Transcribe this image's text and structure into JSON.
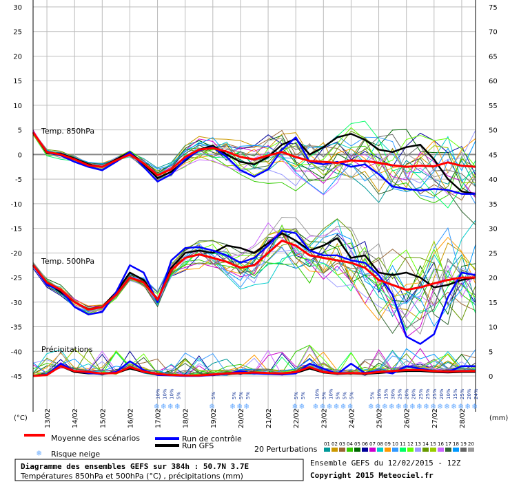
{
  "title_box": {
    "line1": "Diagramme des ensembles GEFS sur 384h : 50.7N 3.7E",
    "line2": "Températures 850hPa et 500hPa (°C) , précipitations (mm)"
  },
  "footer": {
    "run": "Ensemble GEFS du 12/02/2015 - 12Z",
    "copyright": "Copyright 2015 Meteociel.fr"
  },
  "legend": {
    "mean": "Moyenne des scénarios",
    "control": "Run de contrôle",
    "gfs": "Run GFS",
    "snow": "Risque neige",
    "perturbations": "20 Perturbations",
    "colors": {
      "mean": "#ff0000",
      "control": "#0000ff",
      "gfs": "#000000",
      "snow": "#66aaff"
    }
  },
  "perturbation_ids": [
    "01",
    "02",
    "03",
    "04",
    "05",
    "06",
    "07",
    "08",
    "09",
    "10",
    "11",
    "12",
    "13",
    "14",
    "15",
    "16",
    "17",
    "18",
    "19",
    "20"
  ],
  "perturbation_colors": [
    "#009999",
    "#cc9900",
    "#996633",
    "#33cc00",
    "#006600",
    "#000099",
    "#cc00cc",
    "#00cccc",
    "#ff9900",
    "#3399ff",
    "#00ff66",
    "#66ff00",
    "#9999ff",
    "#669900",
    "#99cc00",
    "#cc66ff",
    "#336633",
    "#0099ff",
    "#666666",
    "#999999"
  ],
  "chart_data": {
    "type": "line",
    "x_unit": "date",
    "x_tick_labels": [
      "13/02",
      "14/02",
      "15/02",
      "16/02",
      "17/02",
      "18/02",
      "19/02",
      "20/02",
      "21/02",
      "22/02",
      "23/02",
      "24/02",
      "25/02",
      "26/02",
      "27/02",
      "28/02"
    ],
    "x_range_days": [
      12.5,
      28.5
    ],
    "y_left_label": "(°C)",
    "y_right_label": "(mm)",
    "y_left_ticks": [
      30,
      25,
      20,
      15,
      10,
      5,
      0,
      -5,
      -10,
      -15,
      -20,
      -25,
      -30,
      -35,
      -40,
      -45
    ],
    "y_right_ticks": [
      75,
      70,
      65,
      60,
      55,
      50,
      45,
      40,
      35,
      30,
      25,
      20,
      15,
      10,
      5,
      0
    ],
    "ylim_left": [
      -45,
      30
    ],
    "ylim_right": [
      0,
      75
    ],
    "panel_labels": {
      "t850": "Temp. 850hPa",
      "t500": "Temp. 500hPa",
      "precip": "Précipitations"
    },
    "days": [
      12.5,
      13,
      13.5,
      14,
      14.5,
      15,
      15.5,
      16,
      16.5,
      17,
      17.5,
      18,
      18.5,
      19,
      19.5,
      20,
      20.5,
      21,
      21.5,
      22,
      22.5,
      23,
      23.5,
      24,
      24.5,
      25,
      25.5,
      26,
      26.5,
      27,
      27.5,
      28,
      28.5
    ],
    "series": [
      {
        "name": "t850_mean",
        "role": "mean",
        "values": [
          4.5,
          0.5,
          0,
          -1,
          -2.2,
          -2.5,
          -1.2,
          0,
          -1.8,
          -4.2,
          -3,
          -0.5,
          1,
          1.3,
          0.6,
          -0.5,
          -1,
          -0.2,
          0.5,
          -0.5,
          -1.3,
          -1.5,
          -1.7,
          -1.2,
          -1.3,
          -1.7,
          -2.2,
          -2.5,
          -2.3,
          -2.4,
          -1.6,
          -2.3,
          -2.5
        ]
      },
      {
        "name": "t850_control",
        "role": "control",
        "values": [
          4.5,
          0.5,
          -0.2,
          -1.5,
          -2.5,
          -3.2,
          -1.5,
          0.5,
          -2.5,
          -5.5,
          -4,
          -1,
          0.8,
          1.5,
          -0.5,
          -3.2,
          -4.5,
          -3,
          1,
          3.5,
          -1.5,
          -2,
          -1.5,
          -2.5,
          -2,
          -4,
          -6.5,
          -7,
          -7.3,
          -7,
          -7.2,
          -8,
          -8
        ]
      },
      {
        "name": "t850_gfs",
        "role": "gfs",
        "values": [
          4.5,
          0.3,
          0.2,
          -0.8,
          -2,
          -2.5,
          -1,
          0.5,
          -2,
          -4.8,
          -3.5,
          -1.2,
          1,
          1.8,
          0,
          -1.5,
          -2,
          -0.5,
          2,
          3.2,
          0,
          1.5,
          3.5,
          4.2,
          3,
          1,
          0.5,
          1.5,
          2,
          -1,
          -5,
          -7.5,
          -8
        ]
      },
      {
        "name": "t500_mean",
        "role": "mean",
        "values": [
          -22.5,
          -26,
          -27.5,
          -30,
          -31.5,
          -31,
          -28.5,
          -25,
          -26,
          -29.5,
          -23.5,
          -21,
          -20.3,
          -21,
          -21.8,
          -23,
          -22.5,
          -20,
          -17.5,
          -18.5,
          -20.5,
          -21,
          -21.5,
          -22,
          -23,
          -25.5,
          -26.5,
          -27.5,
          -27,
          -26.2,
          -25.5,
          -25,
          -25
        ]
      },
      {
        "name": "t500_control",
        "role": "control",
        "values": [
          -22.5,
          -26.5,
          -27.5,
          -31,
          -32.5,
          -32,
          -28,
          -22.5,
          -24,
          -30,
          -21.5,
          -19,
          -18.8,
          -19.5,
          -20.5,
          -22,
          -21,
          -18.5,
          -15.5,
          -16,
          -19.5,
          -20.5,
          -20.5,
          -21.5,
          -22,
          -24.5,
          -28.5,
          -37,
          -38.5,
          -36.5,
          -29,
          -24,
          -24.5
        ]
      },
      {
        "name": "t500_gfs",
        "role": "gfs",
        "values": [
          -22.5,
          -26,
          -28,
          -30,
          -31.5,
          -31,
          -28,
          -24,
          -25.5,
          -29.5,
          -23,
          -20,
          -19.5,
          -20,
          -18.5,
          -19,
          -20,
          -18,
          -16,
          -17.5,
          -19.5,
          -18.5,
          -17,
          -21,
          -20.5,
          -24,
          -24.5,
          -24,
          -25,
          -27,
          -26.5,
          -25.5,
          -25
        ]
      },
      {
        "name": "precip_mean",
        "role": "mean",
        "values": [
          0,
          0.2,
          2,
          1,
          0.8,
          0.5,
          0.6,
          1.8,
          0.9,
          0.4,
          0.2,
          0.1,
          0.1,
          0.3,
          0.5,
          0.6,
          0.7,
          0.6,
          0.5,
          0.8,
          1.8,
          0.8,
          0.5,
          0.6,
          0.5,
          0.8,
          1,
          1.2,
          1.2,
          1,
          0.9,
          1,
          1
        ]
      },
      {
        "name": "precip_control",
        "role": "control",
        "values": [
          0,
          0.3,
          2.5,
          1,
          0.6,
          0.4,
          0.8,
          3,
          1.2,
          0.2,
          0.1,
          0,
          0,
          0.2,
          0.4,
          1,
          0.5,
          0.4,
          0.3,
          0.5,
          2.5,
          1.5,
          0.4,
          2.5,
          0.6,
          1,
          0.5,
          2,
          1.5,
          1,
          0.8,
          2,
          2
        ]
      },
      {
        "name": "precip_gfs",
        "role": "gfs",
        "values": [
          0,
          0.2,
          2,
          0.8,
          0.5,
          0.5,
          0.6,
          1.5,
          0.8,
          0.3,
          0.2,
          0.1,
          0.1,
          0.2,
          0.4,
          0.5,
          0.6,
          0.5,
          0.4,
          0.6,
          1.5,
          0.7,
          0.4,
          0.5,
          0.4,
          0.6,
          0.8,
          1,
          1,
          0.8,
          0.7,
          0.8,
          0.8
        ]
      }
    ],
    "snow_risk": [
      {
        "day": 17.0,
        "pct": "10%"
      },
      {
        "day": 17.25,
        "pct": "10%"
      },
      {
        "day": 17.5,
        "pct": "10%"
      },
      {
        "day": 17.75,
        "pct": "5%"
      },
      {
        "day": 19.0,
        "pct": "5%"
      },
      {
        "day": 19.75,
        "pct": "5%"
      },
      {
        "day": 20.0,
        "pct": "5%"
      },
      {
        "day": 20.25,
        "pct": "5%"
      },
      {
        "day": 22.0,
        "pct": "5%"
      },
      {
        "day": 22.25,
        "pct": "5%"
      },
      {
        "day": 22.75,
        "pct": "10%"
      },
      {
        "day": 23.0,
        "pct": "5%"
      },
      {
        "day": 23.25,
        "pct": "10%"
      },
      {
        "day": 23.5,
        "pct": "5%"
      },
      {
        "day": 23.75,
        "pct": "5%"
      },
      {
        "day": 24.0,
        "pct": "5%"
      },
      {
        "day": 24.75,
        "pct": "5%"
      },
      {
        "day": 25.0,
        "pct": "10%"
      },
      {
        "day": 25.25,
        "pct": "15%"
      },
      {
        "day": 25.5,
        "pct": "30%"
      },
      {
        "day": 25.75,
        "pct": "25%"
      },
      {
        "day": 26.0,
        "pct": "20%"
      },
      {
        "day": 26.25,
        "pct": "20%"
      },
      {
        "day": 26.5,
        "pct": "25%"
      },
      {
        "day": 26.75,
        "pct": "25%"
      },
      {
        "day": 27.0,
        "pct": "25%"
      },
      {
        "day": 27.25,
        "pct": "20%"
      },
      {
        "day": 27.5,
        "pct": "10%"
      },
      {
        "day": 27.75,
        "pct": "15%"
      },
      {
        "day": 28.0,
        "pct": "25%"
      },
      {
        "day": 28.25,
        "pct": "20%"
      },
      {
        "day": 28.5,
        "pct": "24%"
      }
    ]
  }
}
